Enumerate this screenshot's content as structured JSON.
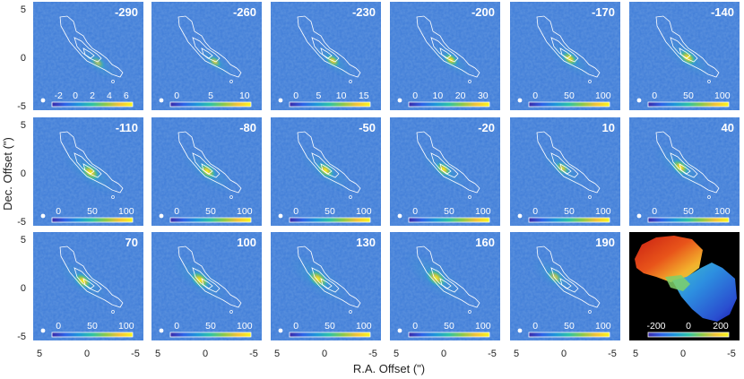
{
  "chart_data": {
    "type": "heatmap",
    "description_free": true,
    "xlabel": "R.A. Offset (\")",
    "ylabel": "Dec. Offset (\")",
    "x_ticks": [
      "5",
      "0",
      "-5"
    ],
    "y_ticks": [
      "5",
      "0",
      "-5"
    ],
    "panels": [
      {
        "label": "-290",
        "cbar_ticks": [
          "-2",
          "0",
          "2",
          "4",
          "6"
        ],
        "peak": 0.55,
        "spread": 1.0
      },
      {
        "label": "-260",
        "cbar_ticks": [
          "0",
          "5",
          "10"
        ],
        "peak": 0.75,
        "spread": 0.9
      },
      {
        "label": "-230",
        "cbar_ticks": [
          "0",
          "5",
          "10",
          "15"
        ],
        "peak": 0.9,
        "spread": 1.0
      },
      {
        "label": "-200",
        "cbar_ticks": [
          "0",
          "10",
          "20",
          "30"
        ],
        "peak": 1.0,
        "spread": 1.0
      },
      {
        "label": "-170",
        "cbar_ticks": [
          "0",
          "50",
          "100"
        ],
        "peak": 0.95,
        "spread": 1.1
      },
      {
        "label": "-140",
        "cbar_ticks": [
          "0",
          "50",
          "100"
        ],
        "peak": 1.0,
        "spread": 1.2
      },
      {
        "label": "-110",
        "cbar_ticks": [
          "0",
          "50",
          "100"
        ],
        "peak": 1.0,
        "spread": 1.3
      },
      {
        "label": "-80",
        "cbar_ticks": [
          "0",
          "50",
          "100"
        ],
        "peak": 1.0,
        "spread": 1.2
      },
      {
        "label": "-50",
        "cbar_ticks": [
          "0",
          "50",
          "100"
        ],
        "peak": 1.0,
        "spread": 1.2
      },
      {
        "label": "-20",
        "cbar_ticks": [
          "0",
          "50",
          "100"
        ],
        "peak": 1.0,
        "spread": 1.1
      },
      {
        "label": "10",
        "cbar_ticks": [
          "0",
          "50",
          "100"
        ],
        "peak": 0.8,
        "spread": 1.0
      },
      {
        "label": "40",
        "cbar_ticks": [
          "0",
          "50",
          "100"
        ],
        "peak": 1.0,
        "spread": 1.2
      },
      {
        "label": "70",
        "cbar_ticks": [
          "0",
          "50",
          "100"
        ],
        "peak": 1.0,
        "spread": 1.2
      },
      {
        "label": "100",
        "cbar_ticks": [
          "0",
          "50",
          "100"
        ],
        "peak": 1.0,
        "spread": 1.3
      },
      {
        "label": "130",
        "cbar_ticks": [
          "0",
          "50",
          "100"
        ],
        "peak": 0.95,
        "spread": 1.4
      },
      {
        "label": "160",
        "cbar_ticks": [
          "0",
          "50",
          "100"
        ],
        "peak": 0.95,
        "spread": 1.4
      },
      {
        "label": "190",
        "cbar_ticks": [
          "0",
          "50",
          "100"
        ],
        "peak": 0.7,
        "spread": 1.1
      }
    ],
    "velocity_panel": {
      "cbar_ticks": [
        "-200",
        "0",
        "200"
      ],
      "range": [
        -250,
        250
      ]
    },
    "colormap": [
      "#3a2aa8",
      "#2d64e8",
      "#1d97d9",
      "#2ec2a5",
      "#8cc94a",
      "#f2c23a",
      "#f9f71a"
    ],
    "background_color": "#3b7ad7",
    "contour_color": "#ffffff"
  }
}
